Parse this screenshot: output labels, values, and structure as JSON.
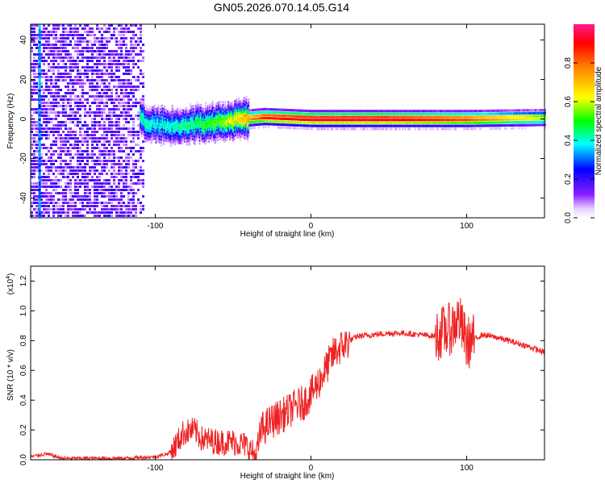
{
  "title": "GN05.2026.070.14.05.G14",
  "colors": {
    "snr_line": "#ee2222",
    "spectrogram_ridge": "#dd1111",
    "background": "#ffffff"
  },
  "chart_data": [
    {
      "type": "heatmap",
      "xlabel": "Height of straight line (km)",
      "ylabel": "Frequency (Hz)",
      "xlim": [
        -180,
        150
      ],
      "ylim": [
        -50,
        48
      ],
      "xticks": [
        -100,
        0,
        100
      ],
      "xtick_labels": [
        "-100",
        "0",
        "100"
      ],
      "yticks": [
        -40,
        -20,
        0,
        20,
        40
      ],
      "ytick_labels": [
        "-40",
        "-20",
        "0",
        "20",
        "40"
      ],
      "colorbar": {
        "label": "Normalized spectral amplitude",
        "range": [
          0.0,
          1.0
        ],
        "ticks": [
          0.0,
          0.2,
          0.4,
          0.6,
          0.8
        ],
        "tick_labels": [
          "0.0",
          "0.2",
          "0.4",
          "0.6",
          "0.8"
        ],
        "colormap": "rainbow (white → purple → blue → cyan → green → yellow → red → magenta)"
      },
      "ridge": {
        "description_points": [
          {
            "x": -110,
            "freq": 0.0,
            "amp": 0.45
          },
          {
            "x": -100,
            "freq": -3.0,
            "amp": 0.4
          },
          {
            "x": -80,
            "freq": -3.5,
            "amp": 0.45
          },
          {
            "x": -60,
            "freq": -1.5,
            "amp": 0.55
          },
          {
            "x": -45,
            "freq": 0.0,
            "amp": 0.7
          },
          {
            "x": -30,
            "freq": 1.0,
            "amp": 0.9
          },
          {
            "x": 0,
            "freq": 0.0,
            "amp": 0.95
          },
          {
            "x": 50,
            "freq": 0.0,
            "amp": 0.95
          },
          {
            "x": 100,
            "freq": 0.0,
            "amp": 0.85
          },
          {
            "x": 150,
            "freq": 0.5,
            "amp": 0.6
          }
        ]
      }
    },
    {
      "type": "line",
      "xlabel": "Height of straight line (km)",
      "ylabel": "SNR (10 * v/v)",
      "y_multiplier_label": "(x10",
      "y_multiplier_exp": "4",
      "xlim": [
        -180,
        150
      ],
      "ylim": [
        0,
        1.3
      ],
      "xticks": [
        -100,
        0,
        100
      ],
      "xtick_labels": [
        "-100",
        "0",
        "100"
      ],
      "yticks": [
        0.0,
        0.2,
        0.4,
        0.6,
        0.8,
        1.0,
        1.2
      ],
      "ytick_labels": [
        "0.0",
        "0.2",
        "0.4",
        "0.6",
        "0.8",
        "1.0",
        "1.2"
      ],
      "series": [
        {
          "x": [
            -180,
            -170,
            -160,
            -140,
            -120,
            -100,
            -92,
            -88,
            -82,
            -75,
            -70,
            -60,
            -50,
            -42,
            -35,
            -32,
            -25,
            -15,
            -10,
            -5,
            0,
            5,
            10,
            15,
            20,
            25,
            30,
            40,
            50,
            60,
            70,
            80,
            85,
            90,
            95,
            100,
            110,
            120,
            130,
            140,
            150
          ],
          "y": [
            0.02,
            0.04,
            0.01,
            0.01,
            0.01,
            0.02,
            0.04,
            0.08,
            0.18,
            0.2,
            0.14,
            0.12,
            0.12,
            0.1,
            0.02,
            0.2,
            0.26,
            0.32,
            0.36,
            0.38,
            0.44,
            0.52,
            0.62,
            0.72,
            0.76,
            0.8,
            0.83,
            0.84,
            0.85,
            0.85,
            0.84,
            0.83,
            0.86,
            0.88,
            0.95,
            0.78,
            0.84,
            0.82,
            0.79,
            0.76,
            0.72
          ]
        }
      ]
    }
  ]
}
